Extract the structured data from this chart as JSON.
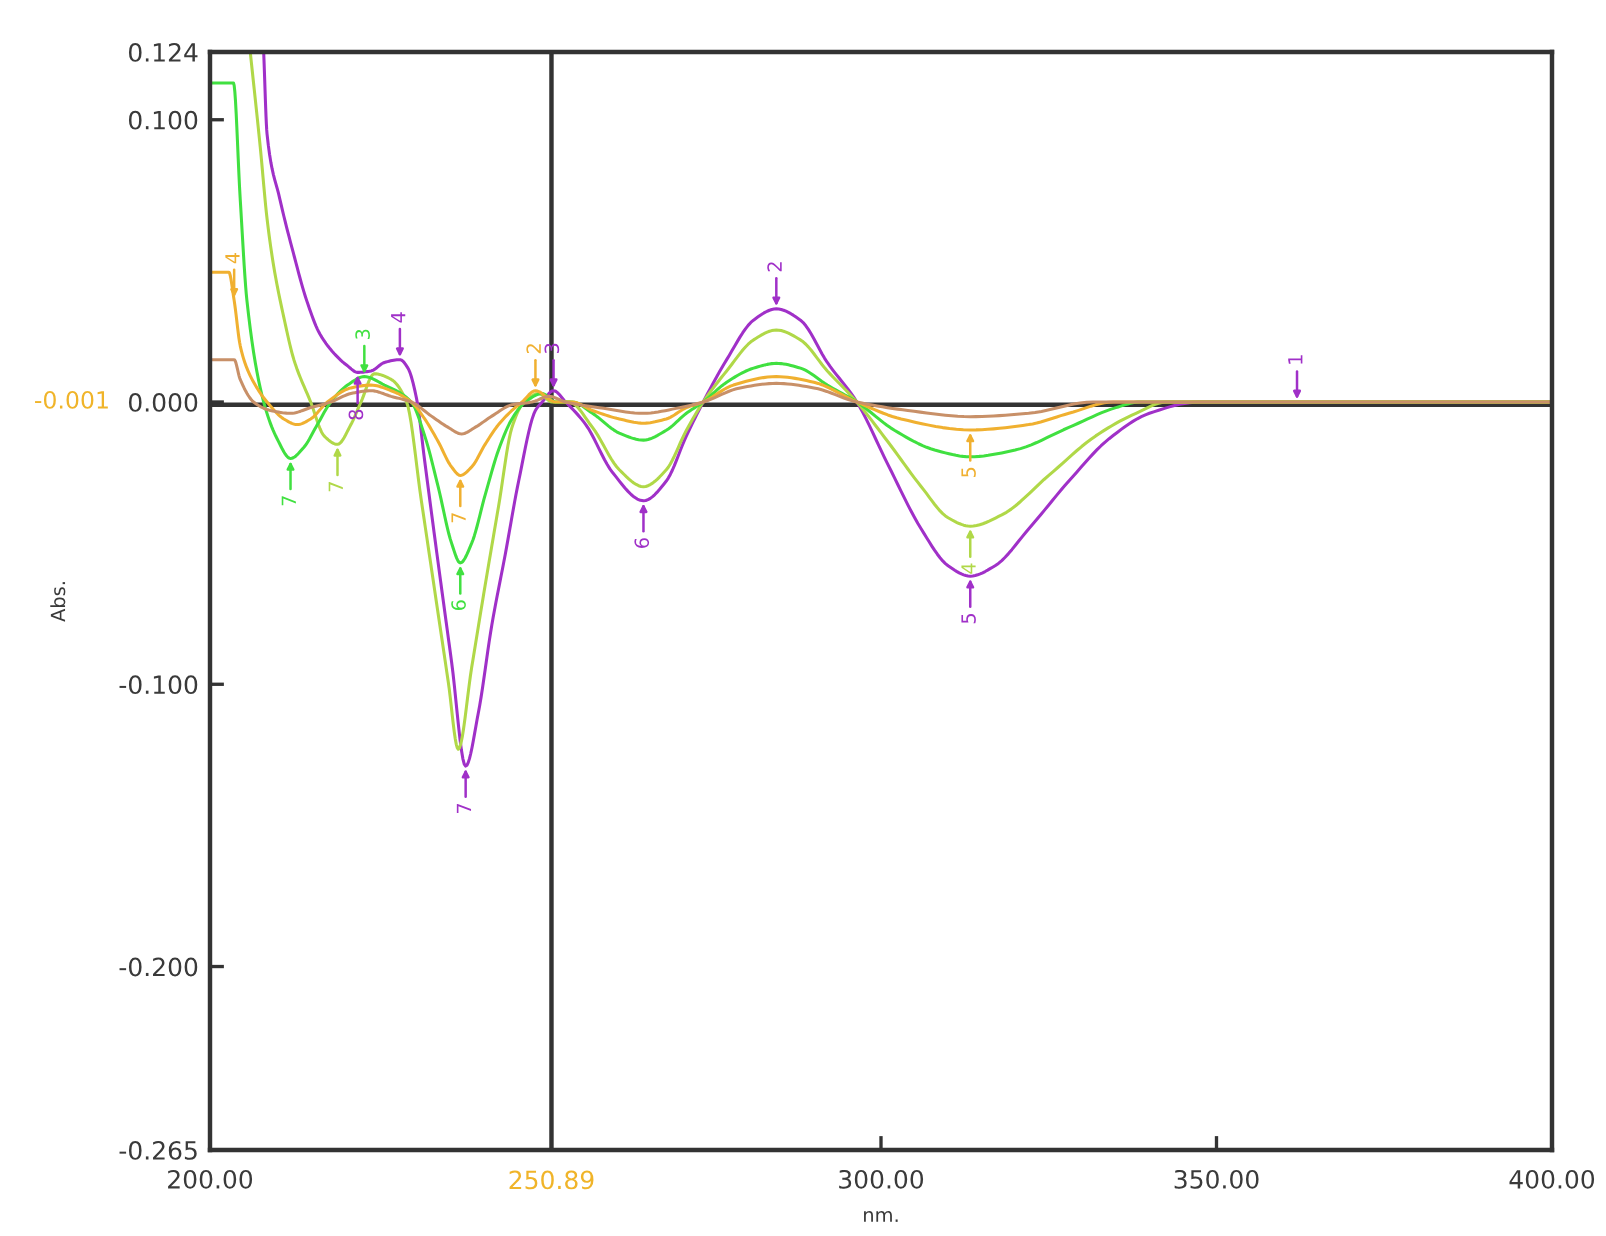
{
  "chart_data": {
    "type": "line",
    "xlabel": "nm.",
    "ylabel": "Abs.",
    "xlim": [
      200,
      400
    ],
    "ylim": [
      -0.265,
      0.124
    ],
    "xticks": [
      {
        "value": 200,
        "label": "200.00"
      },
      {
        "value": 300,
        "label": "300.00"
      },
      {
        "value": 350,
        "label": "350.00"
      },
      {
        "value": 400,
        "label": "400.00"
      }
    ],
    "yticks": [
      {
        "value": 0.124,
        "label": "0.124"
      },
      {
        "value": 0.1,
        "label": "0.100"
      },
      {
        "value": 0,
        "label": "0.000"
      },
      {
        "value": -0.1,
        "label": "-0.100"
      },
      {
        "value": -0.2,
        "label": "-0.200"
      },
      {
        "value": -0.265,
        "label": "-0.265"
      }
    ],
    "ref_lines": [
      {
        "axis": "x",
        "value": 250.89,
        "label": "250.89",
        "color": "#333333"
      },
      {
        "axis": "y",
        "value": -0.001,
        "color": "#333333"
      }
    ],
    "series": [
      {
        "color": "#a030c8",
        "x": [
          208,
          208.5,
          210.4,
          212.4,
          214.4,
          216.4,
          219.4,
          220.4,
          222,
          224,
          226,
          228.3,
          229.5,
          230.8,
          232,
          234,
          236,
          238.1,
          240,
          242,
          244,
          246,
          248.5,
          249.5,
          251.2,
          253,
          256,
          260,
          264.6,
          268,
          271,
          273.5,
          277,
          281,
          284.4,
          288,
          292,
          296.4,
          301,
          306,
          310,
          313.3,
          317,
          322,
          328,
          334,
          340,
          347.5,
          362,
          400
        ],
        "values": [
          0.124,
          0.095,
          0.072,
          0.053,
          0.036,
          0.024,
          0.015,
          0.013,
          0.0105,
          0.011,
          0.014,
          0.015,
          0.012,
          0.001,
          -0.021,
          -0.057,
          -0.092,
          -0.129,
          -0.11,
          -0.079,
          -0.054,
          -0.028,
          -0.003,
          0.0,
          0.004,
          0.0,
          -0.008,
          -0.025,
          -0.035,
          -0.028,
          -0.012,
          0.0,
          0.015,
          0.029,
          0.033,
          0.029,
          0.014,
          0.0,
          -0.022,
          -0.045,
          -0.058,
          -0.0617,
          -0.058,
          -0.045,
          -0.028,
          -0.013,
          -0.004,
          0.0,
          0.0,
          0.0
        ]
      },
      {
        "color": "#b0d848",
        "x": [
          206,
          207.5,
          208.5,
          209.5,
          211,
          212.5,
          215,
          217,
          219,
          221,
          222.5,
          224.5,
          227,
          229.3,
          231.5,
          233.5,
          235.5,
          237,
          239,
          241,
          243,
          245,
          246.8,
          249,
          251,
          253.5,
          257,
          261,
          264.6,
          268,
          271,
          273.5,
          277,
          281,
          284.4,
          288,
          292,
          296.4,
          301,
          306,
          310,
          313.3,
          318,
          325,
          332,
          338,
          342.6,
          400
        ],
        "values": [
          0.124,
          0.09,
          0.065,
          0.048,
          0.03,
          0.015,
          0.0,
          -0.012,
          -0.015,
          -0.008,
          0.0,
          0.01,
          0.008,
          0.0,
          -0.035,
          -0.067,
          -0.099,
          -0.123,
          -0.094,
          -0.065,
          -0.037,
          -0.009,
          0.0,
          0.003,
          0.0,
          0.0,
          -0.009,
          -0.024,
          -0.03,
          -0.024,
          -0.01,
          0.0,
          0.011,
          0.022,
          0.0255,
          0.022,
          0.011,
          0.0,
          -0.014,
          -0.03,
          -0.041,
          -0.044,
          -0.04,
          -0.026,
          -0.012,
          -0.004,
          0.0,
          0.0
        ]
      },
      {
        "color": "#40e040",
        "x": [
          200,
          203.5,
          204.5,
          205.5,
          208,
          210,
          212,
          214,
          216,
          218,
          220.5,
          223,
          226,
          230,
          232,
          234,
          236,
          237.3,
          239,
          241,
          243,
          245,
          247,
          249.5,
          251.5,
          254,
          257,
          261,
          264.6,
          268,
          271,
          273.5,
          277,
          281,
          284.4,
          288,
          292,
          296.4,
          302,
          308,
          313.3,
          320,
          328,
          335,
          338.6,
          400
        ],
        "values": [
          0.113,
          0.113,
          0.072,
          0.036,
          0.0,
          -0.013,
          -0.02,
          -0.016,
          -0.008,
          0.0,
          0.006,
          0.009,
          0.006,
          0.0,
          -0.012,
          -0.03,
          -0.05,
          -0.057,
          -0.05,
          -0.033,
          -0.017,
          -0.006,
          0.0,
          0.003,
          0.0,
          0.0,
          -0.004,
          -0.011,
          -0.0135,
          -0.01,
          -0.004,
          0.0,
          0.007,
          0.012,
          0.0137,
          0.012,
          0.006,
          0.0,
          -0.01,
          -0.017,
          -0.0194,
          -0.017,
          -0.009,
          -0.002,
          0.0,
          0.0
        ]
      },
      {
        "color": "#f0b030",
        "x": [
          200,
          202.8,
          203.6,
          204.5,
          205.5,
          207,
          208.5,
          211,
          213,
          215,
          217.5,
          221,
          224,
          227,
          230,
          232,
          234,
          236,
          237.3,
          239,
          241,
          243,
          245,
          246.5,
          248.5,
          251.5,
          254,
          257,
          261,
          264.6,
          268,
          271,
          273.5,
          278,
          284.4,
          290,
          296.4,
          303,
          313.3,
          322,
          328,
          334.6,
          400
        ],
        "values": [
          0.046,
          0.046,
          0.036,
          0.02,
          0.012,
          0.005,
          0.0,
          -0.006,
          -0.008,
          -0.006,
          0.0,
          0.005,
          0.006,
          0.004,
          0.0,
          -0.006,
          -0.014,
          -0.023,
          -0.026,
          -0.023,
          -0.015,
          -0.008,
          -0.003,
          0.0,
          0.004,
          0.0,
          0.0,
          -0.003,
          -0.006,
          -0.0075,
          -0.006,
          -0.002,
          0.0,
          0.006,
          0.009,
          0.007,
          0.0,
          -0.006,
          -0.0099,
          -0.008,
          -0.004,
          0.0,
          0.0
        ]
      },
      {
        "color": "#c89068",
        "x": [
          200,
          203.6,
          204.5,
          206.5,
          209,
          212,
          215,
          218,
          221,
          224,
          227,
          230,
          233,
          235.5,
          237.5,
          239.5,
          242,
          245,
          248,
          250.5,
          253,
          258,
          264.6,
          270,
          273.5,
          279,
          284.4,
          290,
          296.4,
          304,
          313.3,
          322,
          331.6,
          400
        ],
        "values": [
          0.015,
          0.015,
          0.008,
          0.0,
          -0.003,
          -0.004,
          -0.002,
          0.0,
          0.003,
          0.004,
          0.002,
          0.0,
          -0.005,
          -0.009,
          -0.0113,
          -0.009,
          -0.005,
          -0.001,
          0.0,
          0.002,
          0.0,
          -0.002,
          -0.004,
          -0.002,
          0.0,
          0.005,
          0.0066,
          0.005,
          0.0,
          -0.003,
          -0.0052,
          -0.004,
          0.0,
          0.0
        ]
      }
    ],
    "annotations": [
      "-0.001",
      {
        "text": "1",
        "x": 362,
        "y": 0.0
      },
      {
        "text": "2",
        "x": 284.4,
        "y": 0.033
      },
      {
        "text": "3",
        "x": 251.2,
        "y": 0.004
      },
      {
        "text": "4",
        "x": 228.3,
        "y": 0.015
      },
      {
        "text": "5",
        "x": 313.3,
        "y": -0.0617
      },
      {
        "text": "6",
        "x": 264.6,
        "y": -0.035
      },
      {
        "text": "7",
        "x": 238.1,
        "y": -0.129
      },
      {
        "text": "8",
        "x": 222,
        "y": 0.0105
      },
      {
        "text": "7",
        "x": 212,
        "y": -0.02
      },
      {
        "text": "3",
        "x": 223,
        "y": 0.009
      },
      {
        "text": "6",
        "x": 237.3,
        "y": -0.057
      },
      {
        "text": "7",
        "x": 219,
        "y": -0.015
      },
      {
        "text": "4",
        "x": 313.3,
        "y": -0.044
      },
      {
        "text": "4",
        "x": 203.6,
        "y": 0.036
      },
      {
        "text": "2",
        "x": 248.5,
        "y": 0.004
      },
      {
        "text": "7",
        "x": 237.3,
        "y": -0.026
      },
      {
        "text": "5",
        "x": 313.3,
        "y": -0.0099
      }
    ]
  }
}
